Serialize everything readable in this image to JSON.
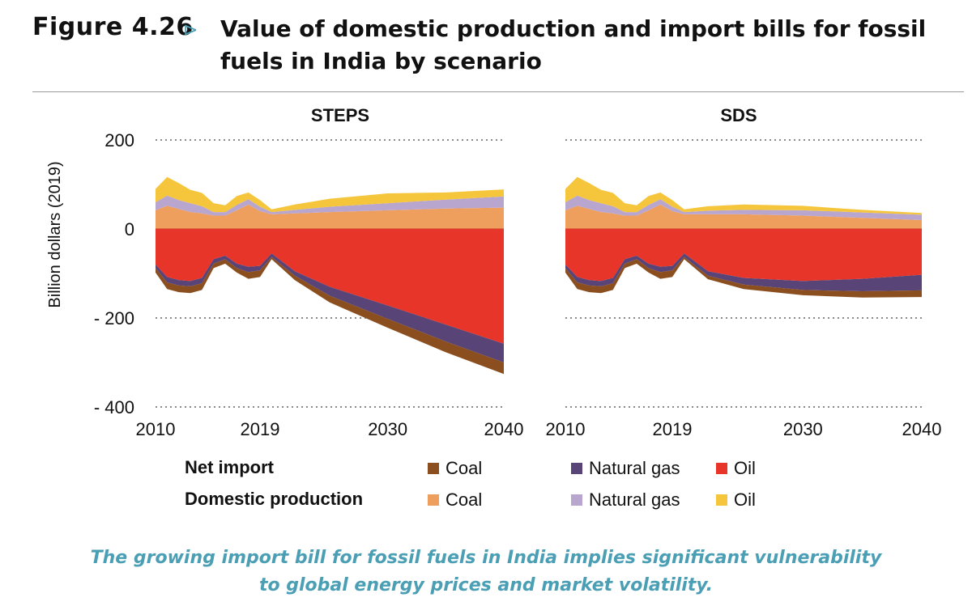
{
  "figure": {
    "label": "Figure 4.26",
    "arrow": "⊳",
    "title": "Value of domestic production and import bills for fossil fuels in India by scenario"
  },
  "caption": {
    "line1": "The growing import bill for fossil fuels in India implies significant vulnerability",
    "line2": "to global energy prices and market volatility."
  },
  "legend": {
    "net_import_label": "Net import",
    "domestic_label": "Domestic production",
    "items": {
      "ni_coal": {
        "label": "Coal",
        "color": "#8b4f1f"
      },
      "ni_gas": {
        "label": "Natural gas",
        "color": "#594478"
      },
      "ni_oil": {
        "label": "Oil",
        "color": "#e8352a"
      },
      "dp_coal": {
        "label": "Coal",
        "color": "#ee9f5e"
      },
      "dp_gas": {
        "label": "Natural gas",
        "color": "#b9a6cf"
      },
      "dp_oil": {
        "label": "Oil",
        "color": "#f5c63c"
      }
    }
  },
  "chart_data": [
    {
      "type": "area",
      "title": "STEPS",
      "ylabel": "Billion dollars (2019)",
      "ylim": [
        -400,
        200
      ],
      "yticks": [
        200,
        0,
        -200,
        -400
      ],
      "ytick_labels": [
        "200",
        "0",
        "- 200",
        "- 400"
      ],
      "xticks": [
        2010,
        2019,
        2030,
        2040
      ],
      "x": [
        2010,
        2011,
        2012,
        2013,
        2014,
        2015,
        2016,
        2017,
        2018,
        2019,
        2020,
        2022,
        2025,
        2030,
        2035,
        2040
      ],
      "positive_series": [
        {
          "name": "Domestic production Coal",
          "values": [
            42,
            52,
            45,
            38,
            35,
            30,
            30,
            42,
            55,
            40,
            33,
            35,
            38,
            42,
            46,
            48
          ]
        },
        {
          "name": "Domestic production Natural gas",
          "values": [
            18,
            23,
            20,
            20,
            16,
            8,
            8,
            12,
            12,
            10,
            5,
            8,
            12,
            16,
            20,
            25
          ]
        },
        {
          "name": "Domestic production Oil",
          "values": [
            30,
            42,
            38,
            30,
            30,
            20,
            15,
            20,
            15,
            15,
            6,
            12,
            18,
            22,
            16,
            16
          ]
        }
      ],
      "negative_series": [
        {
          "name": "Net import Oil",
          "values": [
            -80,
            -108,
            -115,
            -117,
            -110,
            -68,
            -60,
            -78,
            -85,
            -83,
            -55,
            -95,
            -130,
            -172,
            -215,
            -258
          ]
        },
        {
          "name": "Net import Natural gas",
          "values": [
            -8,
            -12,
            -12,
            -12,
            -12,
            -10,
            -8,
            -10,
            -12,
            -10,
            -8,
            -10,
            -20,
            -30,
            -38,
            -42
          ]
        },
        {
          "name": "Net import Coal",
          "values": [
            -10,
            -15,
            -15,
            -15,
            -15,
            -10,
            -10,
            -10,
            -15,
            -15,
            -5,
            -10,
            -15,
            -20,
            -24,
            -26
          ]
        }
      ]
    },
    {
      "type": "area",
      "title": "SDS",
      "ylim": [
        -400,
        200
      ],
      "xticks": [
        2010,
        2019,
        2030,
        2040
      ],
      "x": [
        2010,
        2011,
        2012,
        2013,
        2014,
        2015,
        2016,
        2017,
        2018,
        2019,
        2020,
        2022,
        2025,
        2030,
        2035,
        2040
      ],
      "positive_series": [
        {
          "name": "Domestic production Coal",
          "values": [
            42,
            52,
            45,
            38,
            35,
            30,
            30,
            42,
            55,
            40,
            33,
            33,
            33,
            30,
            25,
            20
          ]
        },
        {
          "name": "Domestic production Natural gas",
          "values": [
            18,
            23,
            20,
            20,
            16,
            8,
            8,
            12,
            12,
            10,
            5,
            8,
            10,
            12,
            12,
            12
          ]
        },
        {
          "name": "Domestic production Oil",
          "values": [
            30,
            42,
            38,
            30,
            30,
            20,
            15,
            20,
            15,
            15,
            6,
            10,
            12,
            10,
            6,
            4
          ]
        }
      ],
      "negative_series": [
        {
          "name": "Net import Oil",
          "values": [
            -80,
            -108,
            -115,
            -117,
            -110,
            -68,
            -60,
            -78,
            -85,
            -83,
            -55,
            -95,
            -110,
            -117,
            -112,
            -103
          ]
        },
        {
          "name": "Net import Natural gas",
          "values": [
            -8,
            -12,
            -12,
            -12,
            -12,
            -10,
            -8,
            -10,
            -12,
            -10,
            -8,
            -10,
            -15,
            -20,
            -28,
            -35
          ]
        },
        {
          "name": "Net import Coal",
          "values": [
            -10,
            -15,
            -15,
            -15,
            -15,
            -10,
            -10,
            -10,
            -15,
            -15,
            -5,
            -8,
            -10,
            -12,
            -14,
            -15
          ]
        }
      ]
    }
  ]
}
